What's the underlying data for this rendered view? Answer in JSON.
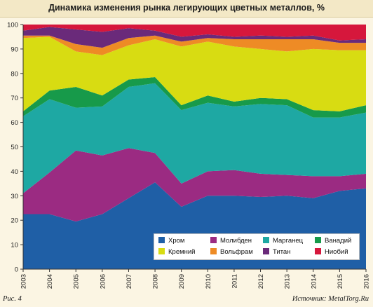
{
  "title": "Динамика изменения рынка легирующих цветных металлов, %",
  "footer": {
    "figure_label": "Рис. 4",
    "source": "Источник: MetalTorg.Ru"
  },
  "chart_data": {
    "type": "area",
    "stacked": true,
    "title": "Динамика изменения рынка легирующих цветных металлов, %",
    "xlabel": "",
    "ylabel": "",
    "x": [
      "2003",
      "2004",
      "2005",
      "2006",
      "2007",
      "2008",
      "2009",
      "2010",
      "2011",
      "2012",
      "2013",
      "2014",
      "2015",
      "2016"
    ],
    "ylim": [
      0,
      100
    ],
    "yticks": [
      0,
      10,
      20,
      30,
      40,
      50,
      60,
      70,
      80,
      90,
      100
    ],
    "grid": false,
    "legend_position": "bottom-right",
    "series": [
      {
        "name": "Хром",
        "color": "#1f5fa6",
        "values": [
          22.5,
          22.5,
          19.5,
          22.5,
          29,
          35.5,
          25.5,
          30,
          30,
          29.5,
          30,
          29,
          32,
          33
        ]
      },
      {
        "name": "Молибден",
        "color": "#9b2b82",
        "values": [
          8.5,
          17,
          29,
          24,
          20.5,
          12,
          9.5,
          10,
          10.5,
          9.5,
          8.5,
          9,
          6,
          6
        ]
      },
      {
        "name": "Марганец",
        "color": "#1ea8a3",
        "values": [
          31.5,
          30,
          17.5,
          20,
          25,
          28.5,
          30,
          28,
          26,
          28.5,
          28.5,
          24,
          24,
          25
        ]
      },
      {
        "name": "Ванадий",
        "color": "#179a4a",
        "values": [
          2,
          3.5,
          8.5,
          4.5,
          3,
          2.5,
          2,
          3,
          2,
          2.5,
          2.5,
          3,
          2.5,
          3
        ]
      },
      {
        "name": "Кремний",
        "color": "#d8dc12",
        "values": [
          30,
          22,
          14.5,
          16.5,
          14,
          15.5,
          24,
          22,
          22.5,
          20,
          19.5,
          25,
          25,
          22.5
        ]
      },
      {
        "name": "Вольфрам",
        "color": "#ee8b25",
        "values": [
          1,
          0.5,
          3,
          3,
          3,
          1.5,
          2,
          1.5,
          3,
          4,
          5,
          4,
          3,
          3
        ]
      },
      {
        "name": "Титан",
        "color": "#6a2a7a",
        "values": [
          2,
          3.5,
          6,
          6.5,
          4,
          2,
          2,
          1.5,
          1,
          1.5,
          1,
          1.5,
          1,
          1.5
        ]
      },
      {
        "name": "Ниобий",
        "color": "#d6173c",
        "values": [
          2.5,
          1,
          2,
          3,
          1.5,
          2.5,
          5,
          4,
          5,
          4.5,
          5,
          4.5,
          6.5,
          6
        ]
      }
    ]
  }
}
